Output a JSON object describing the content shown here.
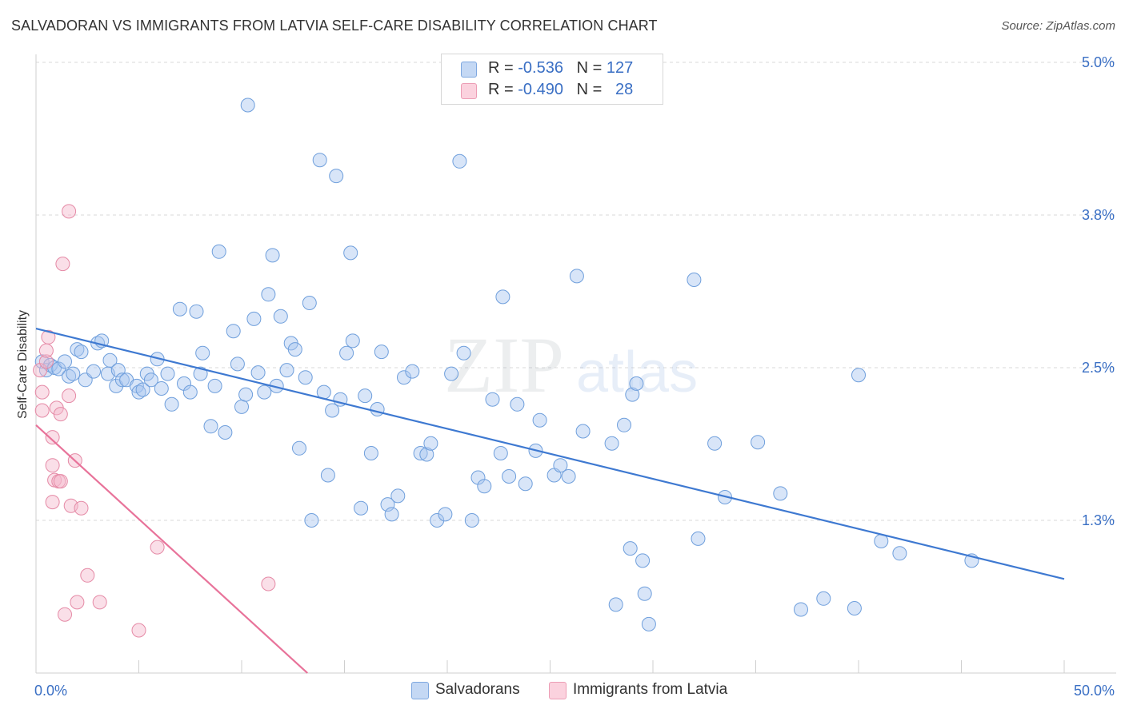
{
  "title": "SALVADORAN VS IMMIGRANTS FROM LATVIA SELF-CARE DISABILITY CORRELATION CHART",
  "source": "Source: ZipAtlas.com",
  "legend": {
    "rows": [
      {
        "r_label": "R =",
        "r_value": "-0.536",
        "n_label": "N =",
        "n_value": "127",
        "color": "#a9c6ef"
      },
      {
        "r_label": "R =",
        "r_value": "-0.490",
        "n_label": "N =",
        "n_value": "28",
        "color": "#f4b8cb"
      }
    ]
  },
  "bottom_legend": [
    {
      "label": "Salvadorans",
      "color": "#a9c6ef"
    },
    {
      "label": "Immigrants from Latvia",
      "color": "#f4b8cb"
    }
  ],
  "chart_data": {
    "type": "scatter",
    "ylabel": "Self-Care Disability",
    "xlabel": "",
    "xlim": [
      0,
      50
    ],
    "ylim": [
      0,
      5.0
    ],
    "x_tick_labels": [
      "0.0%",
      "50.0%"
    ],
    "y_ticks": [
      {
        "value": 5.0,
        "label": "5.0%"
      },
      {
        "value": 3.75,
        "label": "3.8%"
      },
      {
        "value": 2.5,
        "label": "2.5%"
      },
      {
        "value": 1.25,
        "label": "1.3%"
      }
    ],
    "grid": "dashed horizontal",
    "watermark": "ZIPatlas",
    "series": [
      {
        "name": "Salvadorans",
        "color": "#a9c6ef",
        "stroke": "#6f9fdc",
        "trend": {
          "x1": 0,
          "y1": 2.82,
          "x2": 50,
          "y2": 0.77,
          "color": "#3e79d1"
        },
        "points": [
          [
            0.3,
            2.55
          ],
          [
            0.5,
            2.48
          ],
          [
            0.7,
            2.52
          ],
          [
            0.9,
            2.5
          ],
          [
            1.1,
            2.49
          ],
          [
            1.4,
            2.55
          ],
          [
            1.6,
            2.43
          ],
          [
            1.8,
            2.45
          ],
          [
            2.0,
            2.65
          ],
          [
            2.2,
            2.63
          ],
          [
            2.4,
            2.4
          ],
          [
            2.8,
            2.47
          ],
          [
            3.0,
            2.7
          ],
          [
            3.2,
            2.72
          ],
          [
            3.5,
            2.45
          ],
          [
            3.6,
            2.56
          ],
          [
            3.9,
            2.35
          ],
          [
            4.0,
            2.48
          ],
          [
            4.2,
            2.4
          ],
          [
            4.4,
            2.4
          ],
          [
            4.9,
            2.35
          ],
          [
            5.0,
            2.3
          ],
          [
            5.2,
            2.32
          ],
          [
            5.4,
            2.45
          ],
          [
            5.6,
            2.4
          ],
          [
            5.9,
            2.57
          ],
          [
            6.1,
            2.33
          ],
          [
            6.4,
            2.45
          ],
          [
            6.6,
            2.2
          ],
          [
            7.0,
            2.98
          ],
          [
            7.2,
            2.37
          ],
          [
            7.5,
            2.3
          ],
          [
            7.8,
            2.96
          ],
          [
            8.0,
            2.45
          ],
          [
            8.1,
            2.62
          ],
          [
            8.5,
            2.02
          ],
          [
            8.7,
            2.35
          ],
          [
            8.9,
            3.45
          ],
          [
            9.2,
            1.97
          ],
          [
            9.6,
            2.8
          ],
          [
            9.8,
            2.53
          ],
          [
            10.0,
            2.18
          ],
          [
            10.2,
            2.28
          ],
          [
            10.3,
            4.65
          ],
          [
            10.6,
            2.9
          ],
          [
            10.8,
            2.46
          ],
          [
            11.1,
            2.3
          ],
          [
            11.3,
            3.1
          ],
          [
            11.5,
            3.42
          ],
          [
            11.7,
            2.35
          ],
          [
            11.9,
            2.92
          ],
          [
            12.2,
            2.48
          ],
          [
            12.4,
            2.7
          ],
          [
            12.6,
            2.65
          ],
          [
            12.8,
            1.84
          ],
          [
            13.1,
            2.42
          ],
          [
            13.3,
            3.03
          ],
          [
            13.4,
            1.25
          ],
          [
            13.8,
            4.2
          ],
          [
            14.0,
            2.3
          ],
          [
            14.2,
            1.62
          ],
          [
            14.4,
            2.15
          ],
          [
            14.6,
            4.07
          ],
          [
            14.8,
            2.24
          ],
          [
            15.1,
            2.62
          ],
          [
            15.3,
            3.44
          ],
          [
            15.4,
            2.72
          ],
          [
            15.8,
            1.35
          ],
          [
            16.0,
            2.27
          ],
          [
            16.3,
            1.8
          ],
          [
            16.6,
            2.16
          ],
          [
            16.8,
            2.63
          ],
          [
            17.1,
            1.38
          ],
          [
            17.3,
            1.3
          ],
          [
            17.6,
            1.45
          ],
          [
            17.9,
            2.42
          ],
          [
            18.3,
            2.47
          ],
          [
            18.7,
            1.8
          ],
          [
            19.0,
            1.79
          ],
          [
            19.2,
            1.88
          ],
          [
            19.5,
            1.25
          ],
          [
            19.9,
            1.3
          ],
          [
            20.2,
            2.45
          ],
          [
            20.6,
            4.19
          ],
          [
            20.8,
            2.62
          ],
          [
            21.2,
            1.25
          ],
          [
            21.5,
            1.6
          ],
          [
            21.8,
            1.53
          ],
          [
            22.2,
            2.24
          ],
          [
            22.6,
            1.8
          ],
          [
            22.7,
            3.08
          ],
          [
            23.0,
            1.61
          ],
          [
            23.4,
            2.2
          ],
          [
            23.8,
            1.55
          ],
          [
            24.3,
            1.82
          ],
          [
            24.5,
            2.07
          ],
          [
            25.2,
            1.62
          ],
          [
            25.5,
            1.7
          ],
          [
            25.9,
            1.61
          ],
          [
            26.3,
            3.25
          ],
          [
            26.6,
            1.98
          ],
          [
            28.0,
            1.88
          ],
          [
            28.2,
            0.56
          ],
          [
            28.6,
            2.03
          ],
          [
            28.9,
            1.02
          ],
          [
            29.0,
            2.28
          ],
          [
            29.2,
            2.37
          ],
          [
            29.5,
            0.92
          ],
          [
            29.6,
            0.65
          ],
          [
            29.8,
            0.4
          ],
          [
            32.0,
            3.22
          ],
          [
            32.2,
            1.1
          ],
          [
            33.0,
            1.88
          ],
          [
            33.5,
            1.44
          ],
          [
            35.1,
            1.89
          ],
          [
            36.2,
            1.47
          ],
          [
            37.2,
            0.52
          ],
          [
            38.3,
            0.61
          ],
          [
            39.8,
            0.53
          ],
          [
            40.0,
            2.44
          ],
          [
            41.1,
            1.08
          ],
          [
            42.0,
            0.98
          ],
          [
            45.5,
            0.92
          ]
        ]
      },
      {
        "name": "Immigrants from Latvia",
        "color": "#f4b8cb",
        "stroke": "#e58aa6",
        "trend": {
          "x1": 0,
          "y1": 2.03,
          "x2": 13.2,
          "y2": 0.0,
          "color": "#e8739a"
        },
        "points": [
          [
            0.2,
            2.48
          ],
          [
            0.3,
            2.3
          ],
          [
            0.3,
            2.15
          ],
          [
            0.5,
            2.55
          ],
          [
            0.5,
            2.64
          ],
          [
            0.6,
            2.75
          ],
          [
            0.8,
            1.93
          ],
          [
            0.8,
            1.7
          ],
          [
            0.8,
            1.4
          ],
          [
            0.9,
            1.58
          ],
          [
            1.0,
            2.17
          ],
          [
            1.1,
            1.57
          ],
          [
            1.2,
            1.57
          ],
          [
            1.2,
            2.12
          ],
          [
            1.3,
            3.35
          ],
          [
            1.4,
            0.48
          ],
          [
            1.6,
            2.27
          ],
          [
            1.6,
            3.78
          ],
          [
            1.7,
            1.37
          ],
          [
            1.9,
            1.74
          ],
          [
            2.0,
            0.58
          ],
          [
            2.2,
            1.35
          ],
          [
            2.5,
            0.8
          ],
          [
            3.1,
            0.58
          ],
          [
            5.0,
            0.35
          ],
          [
            5.9,
            1.03
          ],
          [
            11.3,
            0.73
          ]
        ]
      }
    ]
  }
}
